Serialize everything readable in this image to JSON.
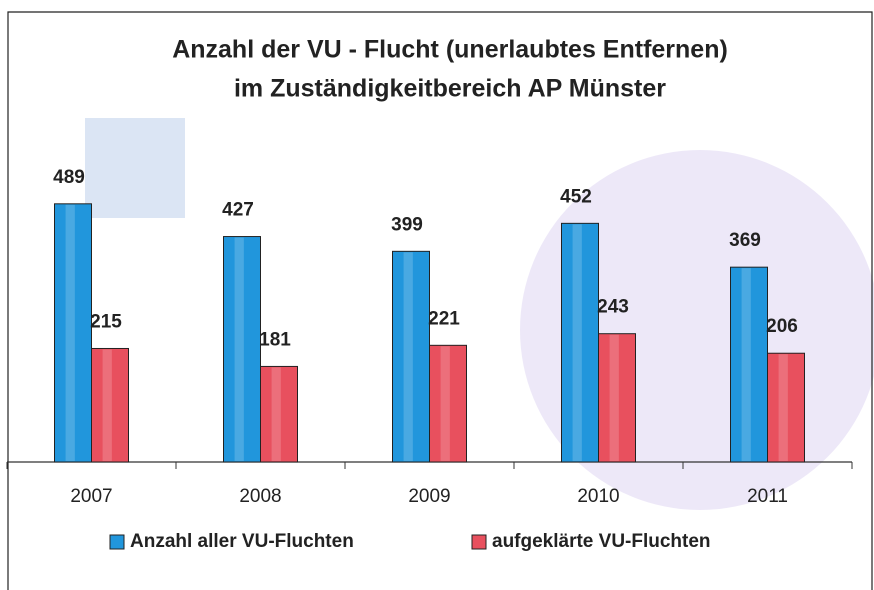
{
  "chart_data": {
    "type": "bar",
    "title": [
      "Anzahl der VU - Flucht (unerlaubtes Entfernen)",
      "im Zuständigkeitbereich AP Münster"
    ],
    "categories": [
      "2007",
      "2008",
      "2009",
      "2010",
      "2011"
    ],
    "series": [
      {
        "name": "Anzahl aller VU-Fluchten",
        "color": "#2196dc",
        "values": [
          489,
          427,
          399,
          452,
          369
        ]
      },
      {
        "name": "aufgeklärte VU-Fluchten",
        "color": "#e8505e",
        "values": [
          215,
          181,
          221,
          243,
          206
        ]
      }
    ],
    "legend": "bottom"
  }
}
